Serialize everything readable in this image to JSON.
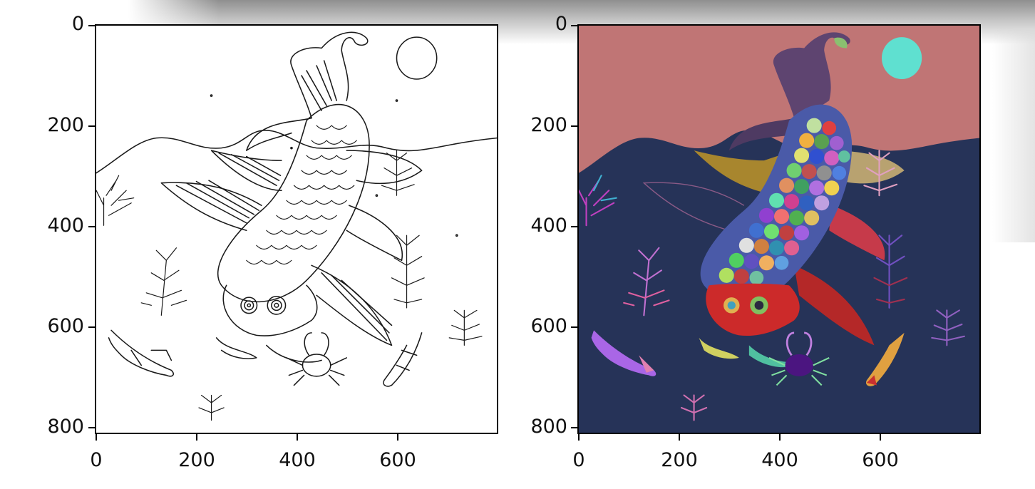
{
  "figure": {
    "panels": [
      {
        "id": "line-art",
        "x_ticks": [
          "0",
          "200",
          "400",
          "600"
        ],
        "y_ticks": [
          "0",
          "200",
          "400",
          "600",
          "800"
        ],
        "colors": {
          "background": "#ffffff",
          "ink": "#1a1a1a"
        }
      },
      {
        "id": "color-segmentation",
        "x_ticks": [
          "0",
          "200",
          "400",
          "600"
        ],
        "y_ticks": [
          "0",
          "200",
          "400",
          "600",
          "800"
        ],
        "colors": {
          "sky": "#c07575",
          "water": "#263358",
          "moon": "#5fe0d0",
          "tail": "#5e4470",
          "fin": "#a8862e",
          "pink_fin": "#c63a4a",
          "head": "#cc2a2a",
          "crab": "#4b1580",
          "small_fish": "#a966e6"
        }
      }
    ]
  }
}
